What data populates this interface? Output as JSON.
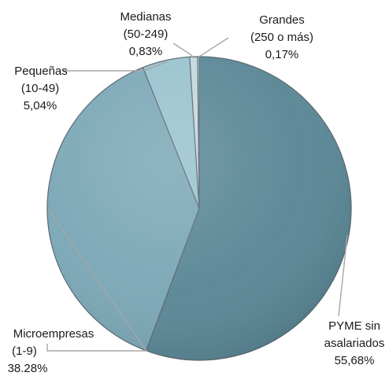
{
  "chart_data": {
    "type": "pie",
    "categories": [
      "PYME sin asalariados",
      "Microempresas (1-9)",
      "Pequeñas (10-49)",
      "Medianas (50-249)",
      "Grandes (250 o más)"
    ],
    "values": [
      55.68,
      38.28,
      5.04,
      0.83,
      0.17
    ],
    "labels": [
      [
        "PYME sin",
        "asalariados",
        "55,68%"
      ],
      [
        "Microempresas",
        "(1-9)",
        "38.28%"
      ],
      [
        "Pequeñas",
        "(10-49)",
        "5,04%"
      ],
      [
        "Medianas",
        "(50-249)",
        "0,83%"
      ],
      [
        "Grandes",
        "(250 o más)",
        "0,17%"
      ]
    ],
    "colors": [
      "#5a8796",
      "#7ba7b6",
      "#99c2cf",
      "#c2d8df",
      "#dce9ee"
    ],
    "start_angle": "12 o'clock",
    "direction": "clockwise",
    "legend": "none",
    "data_labels": "outside with leader lines"
  }
}
